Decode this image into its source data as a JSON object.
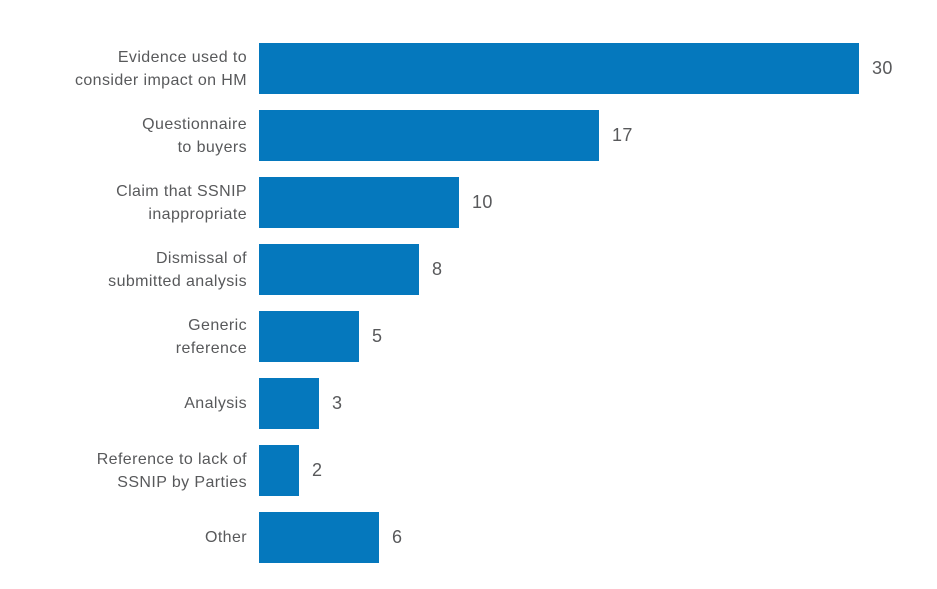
{
  "chart_data": {
    "type": "bar",
    "orientation": "horizontal",
    "title": "",
    "xlabel": "",
    "ylabel": "",
    "categories": [
      "Evidence used to\nconsider impact on HM",
      "Questionnaire\nto buyers",
      "Claim that SSNIP\ninappropriate",
      "Dismissal of\nsubmitted analysis",
      "Generic\nreference",
      "Analysis",
      "Reference to lack of\nSSNIP by Parties",
      "Other"
    ],
    "values": [
      30,
      17,
      10,
      8,
      5,
      3,
      2,
      6
    ],
    "xlim": [
      0,
      30
    ],
    "grid": false,
    "legend": false,
    "value_labels_shown": true,
    "bar_color": "#0578BD",
    "text_color": "#58595B",
    "background_color": "#FFFFFF"
  }
}
